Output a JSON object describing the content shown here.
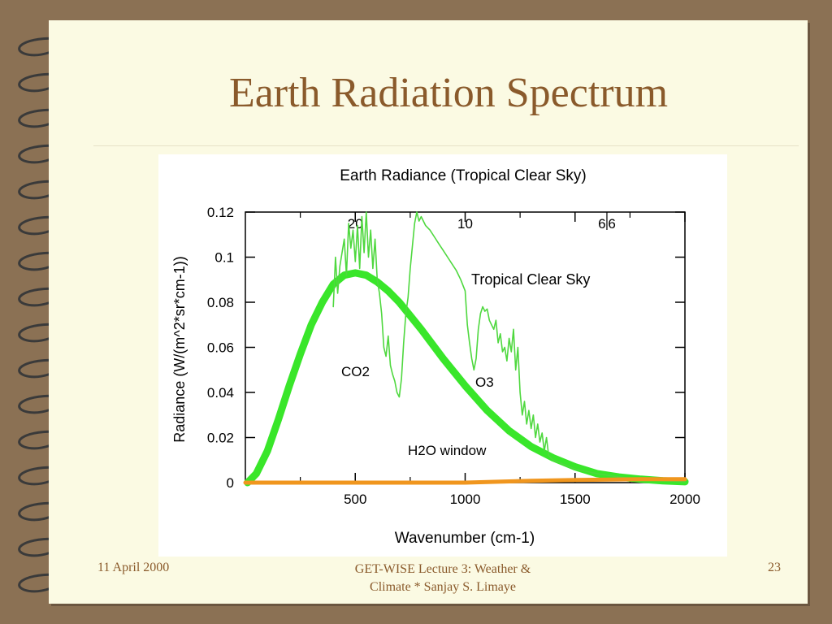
{
  "slide": {
    "title": "Earth Radiation Spectrum",
    "footer_date": "11 April 2000",
    "footer_center_line1": "GET-WISE  Lecture 3: Weather &",
    "footer_center_line2": "Climate  * Sanjay S. Limaye",
    "page_number": "23"
  },
  "colors": {
    "background": "#8b7154",
    "page": "#fbfae3",
    "title": "#8a5a2b",
    "planck_curve": "#39e62a",
    "spectrum_line": "#4fd83f",
    "baseline": "#f0961e"
  },
  "chart_data": {
    "type": "line",
    "title": "Earth Radiance (Tropical Clear Sky)",
    "xlabel": "Wavenumber (cm-1)",
    "ylabel": "Radiance (W/(m^2*sr*cm-1))",
    "xlim": [
      0,
      2000
    ],
    "ylim": [
      0,
      0.12
    ],
    "x_ticks": [
      500,
      1000,
      1500,
      2000
    ],
    "y_ticks": [
      "0",
      "0.02",
      "0.04",
      "0.06",
      "0.08",
      "0.1",
      "0.12"
    ],
    "top_ticks": [
      "20",
      "10",
      "6",
      "6"
    ],
    "grid": false,
    "annotations": [
      "Tropical Clear Sky",
      "CO2",
      "O3",
      "H2O window"
    ],
    "series": [
      {
        "x": [
          10,
          50,
          100,
          150,
          200,
          250,
          300,
          350,
          400,
          450,
          500,
          550,
          600,
          650,
          700,
          750,
          800,
          900,
          1000,
          1100,
          1200,
          1300,
          1400,
          1500,
          1600,
          1700,
          1800,
          1900,
          2000
        ],
        "y": [
          0.0,
          0.004,
          0.014,
          0.028,
          0.043,
          0.057,
          0.07,
          0.08,
          0.088,
          0.092,
          0.093,
          0.092,
          0.089,
          0.085,
          0.08,
          0.074,
          0.068,
          0.055,
          0.043,
          0.032,
          0.023,
          0.016,
          0.011,
          0.007,
          0.004,
          0.0025,
          0.0015,
          0.0008,
          0.0004
        ]
      },
      {
        "x": [
          400,
          410,
          420,
          430,
          440,
          450,
          460,
          470,
          480,
          490,
          500,
          510,
          520,
          530,
          540,
          550,
          560,
          570,
          580,
          590,
          600,
          610,
          620,
          630,
          640,
          650,
          660,
          670,
          680,
          690,
          700,
          710,
          720,
          730,
          740,
          750,
          760,
          770,
          780,
          790,
          800,
          820,
          840,
          860,
          880,
          900,
          920,
          940,
          960,
          980,
          1000,
          1010,
          1020,
          1030,
          1040,
          1050,
          1060,
          1070,
          1080,
          1090,
          1100,
          1110,
          1120,
          1130,
          1140,
          1150,
          1160,
          1170,
          1180,
          1190,
          1200,
          1210,
          1220,
          1230,
          1240,
          1250,
          1260,
          1270,
          1280,
          1290,
          1300,
          1310,
          1320,
          1330,
          1340,
          1350,
          1360,
          1370,
          1380,
          1400,
          1450,
          1500,
          1600,
          1700,
          1800,
          1900,
          2000
        ],
        "y": [
          0.078,
          0.1,
          0.084,
          0.096,
          0.102,
          0.108,
          0.092,
          0.115,
          0.104,
          0.112,
          0.098,
          0.114,
          0.095,
          0.118,
          0.102,
          0.12,
          0.1,
          0.112,
          0.095,
          0.108,
          0.09,
          0.084,
          0.075,
          0.06,
          0.056,
          0.065,
          0.052,
          0.048,
          0.045,
          0.04,
          0.038,
          0.046,
          0.062,
          0.075,
          0.082,
          0.095,
          0.105,
          0.115,
          0.12,
          0.116,
          0.118,
          0.114,
          0.112,
          0.109,
          0.106,
          0.103,
          0.1,
          0.097,
          0.094,
          0.09,
          0.085,
          0.07,
          0.062,
          0.055,
          0.05,
          0.055,
          0.068,
          0.075,
          0.078,
          0.076,
          0.077,
          0.072,
          0.07,
          0.068,
          0.072,
          0.062,
          0.066,
          0.058,
          0.06,
          0.054,
          0.064,
          0.058,
          0.068,
          0.05,
          0.06,
          0.04,
          0.03,
          0.036,
          0.026,
          0.032,
          0.024,
          0.03,
          0.02,
          0.026,
          0.018,
          0.022,
          0.014,
          0.02,
          0.012,
          0.01,
          0.008,
          0.006,
          0.004,
          0.0025,
          0.0015,
          0.0008,
          0.0004
        ]
      },
      {
        "x": [
          0,
          1000,
          1300,
          1500,
          1800,
          2000
        ],
        "y": [
          0.0,
          0.0,
          0.0008,
          0.0012,
          0.0015,
          0.0015
        ]
      }
    ]
  }
}
